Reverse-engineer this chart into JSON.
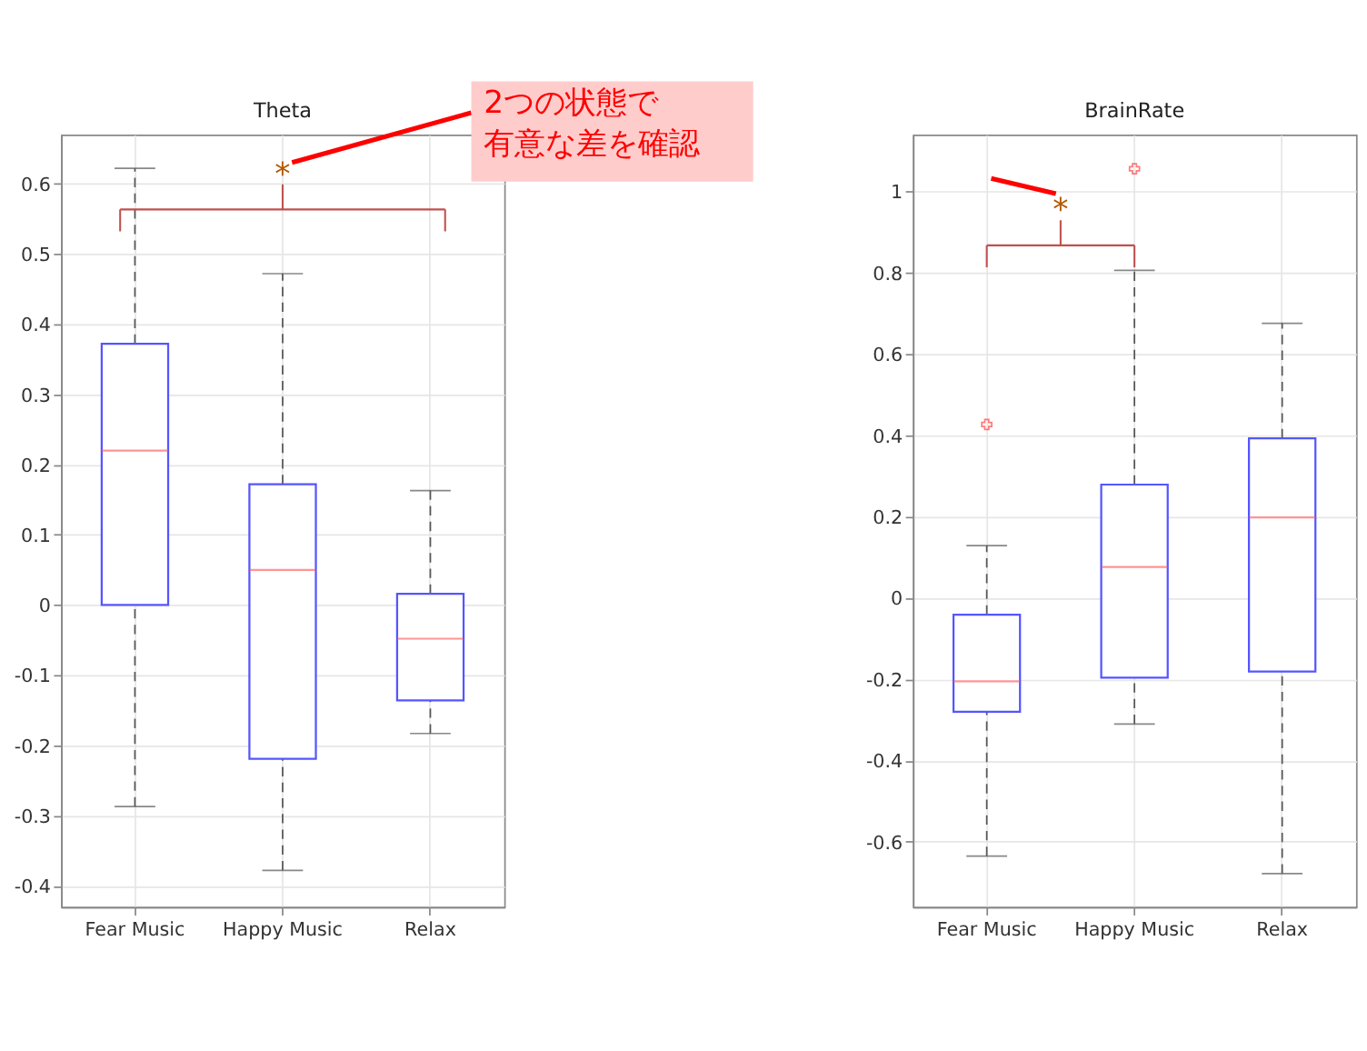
{
  "chart_data": [
    {
      "type": "box",
      "title": "Theta",
      "categories": [
        "Fear Music",
        "Happy Music",
        "Relax"
      ],
      "boxes": [
        {
          "low": -0.287,
          "q1": 0,
          "median": 0.22,
          "q3": 0.372,
          "high": 0.622
        },
        {
          "low": -0.378,
          "q1": -0.219,
          "median": 0.05,
          "q3": 0.172,
          "high": 0.472
        },
        {
          "low": -0.183,
          "q1": -0.136,
          "median": -0.048,
          "q3": 0.016,
          "high": 0.163
        }
      ],
      "ylim": [
        -0.43,
        0.67
      ],
      "yticks": [
        -0.4,
        -0.3,
        -0.2,
        -0.1,
        0,
        0.1,
        0.2,
        0.3,
        0.4,
        0.5,
        0.6
      ],
      "grid": true,
      "annotations": [
        "*",
        "2つの状態で有意な差を確認"
      ]
    },
    {
      "type": "box",
      "title": "BrainRate",
      "categories": [
        "Fear Music",
        "Happy Music",
        "Relax"
      ],
      "boxes": [
        {
          "low": -0.635,
          "q1": -0.28,
          "median": -0.205,
          "q3": -0.041,
          "high": 0.129,
          "outliers": [
            0.427
          ]
        },
        {
          "low": -0.31,
          "q1": -0.196,
          "median": 0.076,
          "q3": 0.279,
          "high": 0.806,
          "outliers": [
            1.056
          ]
        },
        {
          "low": -0.678,
          "q1": -0.181,
          "median": 0.198,
          "q3": 0.393,
          "high": 0.676
        }
      ],
      "ylim": [
        -0.76,
        1.14
      ],
      "yticks": [
        -0.6,
        -0.4,
        -0.2,
        0,
        0.2,
        0.4,
        0.6,
        0.8,
        1
      ],
      "grid": true,
      "annotations": [
        "*"
      ]
    }
  ]
}
